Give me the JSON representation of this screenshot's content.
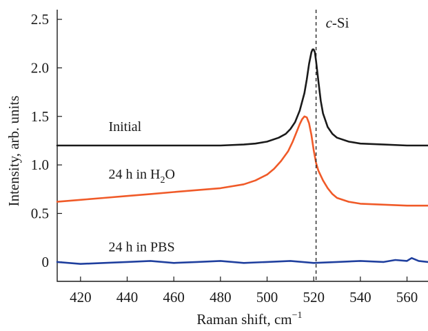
{
  "chart_data": {
    "type": "line",
    "xlabel": "Raman shift, cm",
    "xlabel_sup": "−1",
    "ylabel": "Intensity, arb. units",
    "xlim": [
      410,
      569
    ],
    "ylim": [
      -0.2,
      2.6
    ],
    "x_ticks": [
      420,
      440,
      460,
      480,
      500,
      520,
      540,
      560
    ],
    "y_ticks": [
      0,
      0.5,
      1.0,
      1.5,
      2.0,
      2.5
    ],
    "y_tick_labels": [
      "0",
      "0.5",
      "1.0",
      "1.5",
      "2.0",
      "2.5"
    ],
    "grid": false,
    "reference_line": {
      "x": 521,
      "label_italic": "c",
      "label_rest": "-Si"
    },
    "series": [
      {
        "name": "Initial",
        "color": "#1a1a1a",
        "label_x": 432,
        "label_y": 1.35,
        "x": [
          410,
          420,
          430,
          440,
          450,
          460,
          470,
          480,
          490,
          495,
          500,
          505,
          508,
          510,
          512,
          514,
          516,
          517,
          518,
          519,
          519.5,
          520,
          520.5,
          521,
          522,
          523,
          524,
          526,
          528,
          530,
          535,
          540,
          550,
          560,
          569
        ],
        "y": [
          1.2,
          1.2,
          1.2,
          1.2,
          1.2,
          1.2,
          1.2,
          1.2,
          1.21,
          1.22,
          1.24,
          1.28,
          1.32,
          1.37,
          1.44,
          1.56,
          1.74,
          1.88,
          2.04,
          2.16,
          2.19,
          2.19,
          2.16,
          2.07,
          1.86,
          1.66,
          1.53,
          1.39,
          1.32,
          1.28,
          1.24,
          1.22,
          1.21,
          1.2,
          1.2
        ]
      },
      {
        "name_prefix": "24 h in H",
        "name_sub": "2",
        "name_suffix": "O",
        "color": "#f05a28",
        "label_x": 432,
        "label_y": 0.86,
        "x": [
          410,
          420,
          430,
          440,
          450,
          460,
          470,
          480,
          490,
          495,
          500,
          503,
          506,
          509,
          511,
          513,
          514,
          515,
          516,
          517,
          518,
          519,
          520,
          521,
          522,
          524,
          526,
          528,
          530,
          535,
          540,
          550,
          560,
          569
        ],
        "y": [
          0.62,
          0.64,
          0.66,
          0.68,
          0.7,
          0.72,
          0.74,
          0.76,
          0.8,
          0.84,
          0.9,
          0.96,
          1.04,
          1.14,
          1.24,
          1.36,
          1.42,
          1.47,
          1.5,
          1.49,
          1.43,
          1.31,
          1.15,
          1.02,
          0.94,
          0.84,
          0.76,
          0.7,
          0.66,
          0.62,
          0.6,
          0.59,
          0.58,
          0.58
        ]
      },
      {
        "name": "24 h in PBS",
        "color": "#1f3f9e",
        "label_x": 432,
        "label_y": 0.11,
        "x": [
          410,
          420,
          430,
          440,
          450,
          460,
          470,
          480,
          490,
          500,
          510,
          520,
          530,
          540,
          550,
          555,
          560,
          562,
          565,
          569
        ],
        "y": [
          0.0,
          -0.02,
          -0.01,
          0.0,
          0.01,
          -0.01,
          0.0,
          0.01,
          -0.01,
          0.0,
          0.01,
          -0.01,
          0.0,
          0.01,
          0.0,
          0.02,
          0.01,
          0.04,
          0.01,
          0.0
        ]
      }
    ]
  }
}
